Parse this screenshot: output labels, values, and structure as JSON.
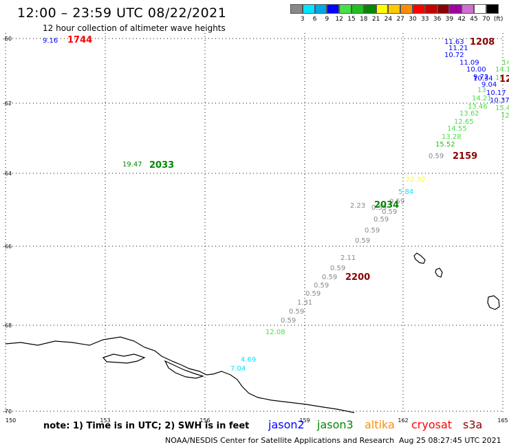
{
  "title": "12:00 – 23:59 UTC 08/22/2021",
  "subtitle": "12 hour collection of altimeter wave heights",
  "legend": {
    "labels": [
      "3",
      "6",
      "9",
      "12",
      "15",
      "18",
      "21",
      "24",
      "27",
      "30",
      "33",
      "36",
      "39",
      "42",
      "45",
      "70",
      "(ft)"
    ],
    "colors": [
      "#888888",
      "#00e5ff",
      "#00a8e8",
      "#0000ff",
      "#46e046",
      "#20c020",
      "#008800",
      "#ffff00",
      "#ffc800",
      "#ff8c00",
      "#ff0000",
      "#c80000",
      "#8b0000",
      "#a000a0",
      "#d070d0",
      "#ffffff",
      "#000000"
    ]
  },
  "axes": {
    "lon_ticks": [
      "150",
      "153",
      "156",
      "159",
      "162",
      "165"
    ],
    "lat_ticks": [
      "-60",
      "-62",
      "-64",
      "-66",
      "-68",
      "-70"
    ]
  },
  "times": [
    {
      "text": "1744",
      "color": "#ff0000"
    },
    {
      "text": "1208",
      "color": "#8b0000"
    },
    {
      "text": "12",
      "color": "#8b0000"
    },
    {
      "text": "2033",
      "color": "#008800"
    },
    {
      "text": "2159",
      "color": "#8b0000"
    },
    {
      "text": "2034",
      "color": "#008800"
    },
    {
      "text": "2200",
      "color": "#8b0000"
    }
  ],
  "values": [
    {
      "text": "9.16",
      "color": "#0000ff"
    },
    {
      "text": "11.63",
      "color": "#0000ff"
    },
    {
      "text": "11.21",
      "color": "#0000ff"
    },
    {
      "text": "10.72",
      "color": "#0000ff"
    },
    {
      "text": "11.09",
      "color": "#0000ff"
    },
    {
      "text": "10.00",
      "color": "#0000ff"
    },
    {
      "text": "9.72",
      "color": "#0000ff"
    },
    {
      "text": "10.34",
      "color": "#0000ff"
    },
    {
      "text": "9.04",
      "color": "#0000ff"
    },
    {
      "text": "10.17",
      "color": "#0000ff"
    },
    {
      "text": "10.37",
      "color": "#0000ff"
    },
    {
      "text": "14",
      "color": "#46e046"
    },
    {
      "text": "14.1",
      "color": "#46e046"
    },
    {
      "text": "14",
      "color": "#46e046"
    },
    {
      "text": "13",
      "color": "#46e046"
    },
    {
      "text": "14.21",
      "color": "#46e046"
    },
    {
      "text": "15.4",
      "color": "#46e046"
    },
    {
      "text": "13.46",
      "color": "#46e046"
    },
    {
      "text": "12",
      "color": "#46e046"
    },
    {
      "text": "13.62",
      "color": "#46e046"
    },
    {
      "text": "12.65",
      "color": "#46e046"
    },
    {
      "text": "14.55",
      "color": "#46e046"
    },
    {
      "text": "13.28",
      "color": "#46e046"
    },
    {
      "text": "15.52",
      "color": "#20c020"
    },
    {
      "text": "0.59",
      "color": "#888888"
    },
    {
      "text": "19.47",
      "color": "#008800"
    },
    {
      "text": "22.32",
      "color": "#ffff00"
    },
    {
      "text": "5.84",
      "color": "#00e5ff"
    },
    {
      "text": "0.59",
      "color": "#888888"
    },
    {
      "text": "2.23",
      "color": "#888888"
    },
    {
      "text": "0.59",
      "color": "#888888"
    },
    {
      "text": "0.59",
      "color": "#888888"
    },
    {
      "text": "0.59",
      "color": "#888888"
    },
    {
      "text": "0.59",
      "color": "#888888"
    },
    {
      "text": "0.59",
      "color": "#888888"
    },
    {
      "text": "2.11",
      "color": "#888888"
    },
    {
      "text": "0.59",
      "color": "#888888"
    },
    {
      "text": "0.59",
      "color": "#888888"
    },
    {
      "text": "0.59",
      "color": "#888888"
    },
    {
      "text": "0.59",
      "color": "#888888"
    },
    {
      "text": "1.31",
      "color": "#888888"
    },
    {
      "text": "0.59",
      "color": "#888888"
    },
    {
      "text": "0.59",
      "color": "#888888"
    },
    {
      "text": "12.08",
      "color": "#46e046"
    },
    {
      "text": "4.69",
      "color": "#00e5ff"
    },
    {
      "text": "7.04",
      "color": "#00e5ff"
    }
  ],
  "note": "note: 1) Time is in UTC; 2) SWH is in feet",
  "satellites": [
    {
      "name": "jason2",
      "color": "#0000ff"
    },
    {
      "name": "jason3",
      "color": "#008800"
    },
    {
      "name": "altika",
      "color": "#ff8c00"
    },
    {
      "name": "cryosat",
      "color": "#ff0000"
    },
    {
      "name": "s3a",
      "color": "#8b0000"
    }
  ],
  "credit": "NOAA/NESDIS Center for Satellite Applications and Research",
  "timestamp": "Aug 25 08:27:45 UTC 2021"
}
